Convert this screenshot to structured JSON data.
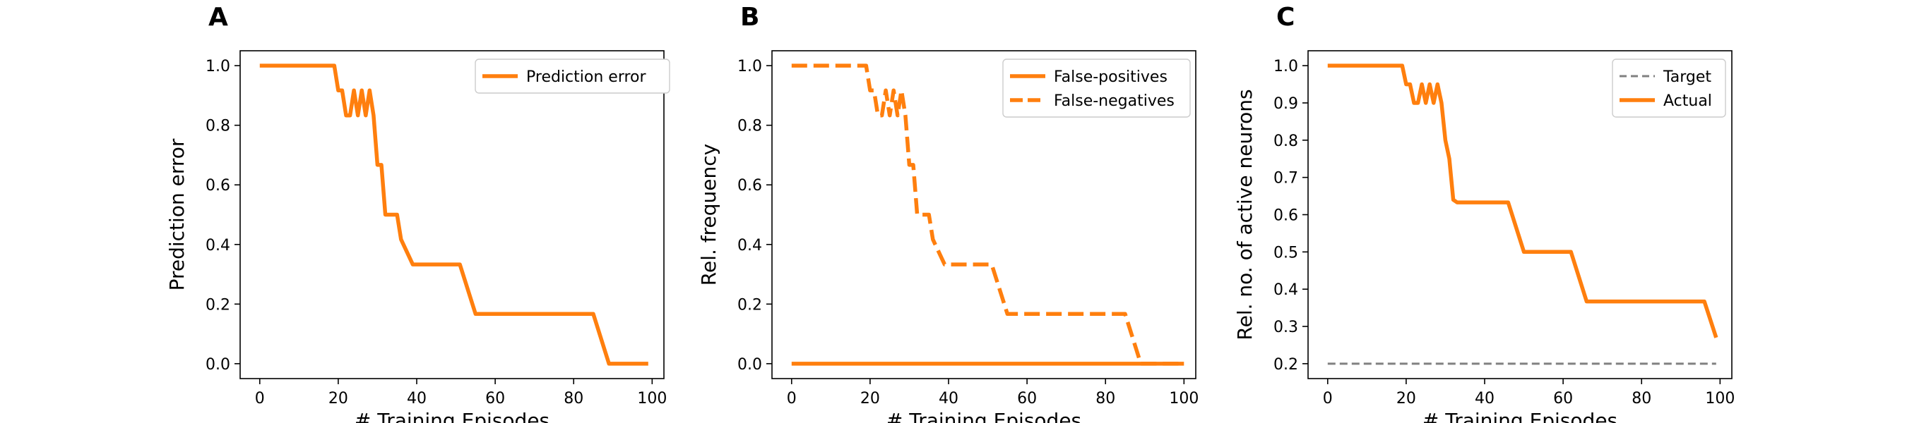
{
  "figure": {
    "colors": {
      "orange": "#ff7f0e",
      "gray": "#808080"
    }
  },
  "chart_data": [
    {
      "type": "line",
      "panel_label": "A",
      "xlabel": "# Training Episodes",
      "ylabel": "Prediction error",
      "xlim": [
        -5,
        103
      ],
      "ylim": [
        -0.05,
        1.05
      ],
      "xticks": [
        0,
        20,
        40,
        60,
        80,
        100
      ],
      "yticks": [
        0.0,
        0.2,
        0.4,
        0.6,
        0.8,
        1.0
      ],
      "xtick_labels": [
        "0",
        "20",
        "40",
        "60",
        "80",
        "100"
      ],
      "ytick_labels": [
        "0.0",
        "0.2",
        "0.4",
        "0.6",
        "0.8",
        "1.0"
      ],
      "legend_position": "top-right",
      "series": [
        {
          "name": "Prediction error",
          "color": "#ff7f0e",
          "style": "solid",
          "x": [
            0,
            19,
            20,
            21,
            22,
            23,
            24,
            25,
            26,
            27,
            28,
            29,
            30,
            31,
            32,
            33,
            35,
            36,
            39,
            51,
            55,
            85,
            89,
            99
          ],
          "y": [
            1.0,
            1.0,
            0.917,
            0.917,
            0.833,
            0.833,
            0.917,
            0.833,
            0.917,
            0.833,
            0.917,
            0.833,
            0.667,
            0.667,
            0.5,
            0.5,
            0.5,
            0.417,
            0.333,
            0.333,
            0.167,
            0.167,
            0.0,
            0.0
          ]
        }
      ]
    },
    {
      "type": "line",
      "panel_label": "B",
      "xlabel": "# Training Episodes",
      "ylabel": "Rel. frequency",
      "xlim": [
        -5,
        103
      ],
      "ylim": [
        -0.05,
        1.05
      ],
      "xticks": [
        0,
        20,
        40,
        60,
        80,
        100
      ],
      "yticks": [
        0.0,
        0.2,
        0.4,
        0.6,
        0.8,
        1.0
      ],
      "xtick_labels": [
        "0",
        "20",
        "40",
        "60",
        "80",
        "100"
      ],
      "ytick_labels": [
        "0.0",
        "0.2",
        "0.4",
        "0.6",
        "0.8",
        "1.0"
      ],
      "legend_position": "top-right",
      "series": [
        {
          "name": "False-positives",
          "color": "#ff7f0e",
          "style": "solid",
          "x": [
            0,
            100
          ],
          "y": [
            0.0,
            0.0
          ]
        },
        {
          "name": "False-negatives",
          "color": "#ff7f0e",
          "style": "dashed",
          "x": [
            0,
            19,
            20,
            21,
            22,
            23,
            24,
            25,
            26,
            27,
            28,
            29,
            30,
            31,
            32,
            33,
            35,
            36,
            39,
            51,
            55,
            85,
            89,
            99
          ],
          "y": [
            1.0,
            1.0,
            0.917,
            0.917,
            0.833,
            0.833,
            0.917,
            0.833,
            0.917,
            0.833,
            0.917,
            0.833,
            0.667,
            0.667,
            0.5,
            0.5,
            0.5,
            0.417,
            0.333,
            0.333,
            0.167,
            0.167,
            0.0,
            0.0
          ]
        }
      ]
    },
    {
      "type": "line",
      "panel_label": "C",
      "xlabel": "# Training Episodes",
      "ylabel": "Rel. no. of active neurons",
      "xlim": [
        -5,
        103
      ],
      "ylim": [
        0.16,
        1.04
      ],
      "xticks": [
        0,
        20,
        40,
        60,
        80,
        100
      ],
      "yticks": [
        0.2,
        0.3,
        0.4,
        0.5,
        0.6,
        0.7,
        0.8,
        0.9,
        1.0
      ],
      "xtick_labels": [
        "0",
        "20",
        "40",
        "60",
        "80",
        "100"
      ],
      "ytick_labels": [
        "0.2",
        "0.3",
        "0.4",
        "0.5",
        "0.6",
        "0.7",
        "0.8",
        "0.9",
        "1.0"
      ],
      "legend_position": "top-right",
      "series": [
        {
          "name": "Target",
          "color": "#808080",
          "style": "dashed-thin",
          "x": [
            0,
            99
          ],
          "y": [
            0.2,
            0.2
          ]
        },
        {
          "name": "Actual",
          "color": "#ff7f0e",
          "style": "solid",
          "x": [
            0,
            19,
            20,
            21,
            22,
            23,
            24,
            25,
            26,
            27,
            28,
            29,
            30,
            31,
            32,
            33,
            35,
            46,
            50,
            62,
            66,
            96,
            99
          ],
          "y": [
            1.0,
            1.0,
            0.95,
            0.95,
            0.9,
            0.9,
            0.95,
            0.9,
            0.95,
            0.9,
            0.95,
            0.9,
            0.8,
            0.75,
            0.64,
            0.633,
            0.633,
            0.633,
            0.5,
            0.5,
            0.367,
            0.367,
            0.27
          ]
        }
      ]
    }
  ]
}
